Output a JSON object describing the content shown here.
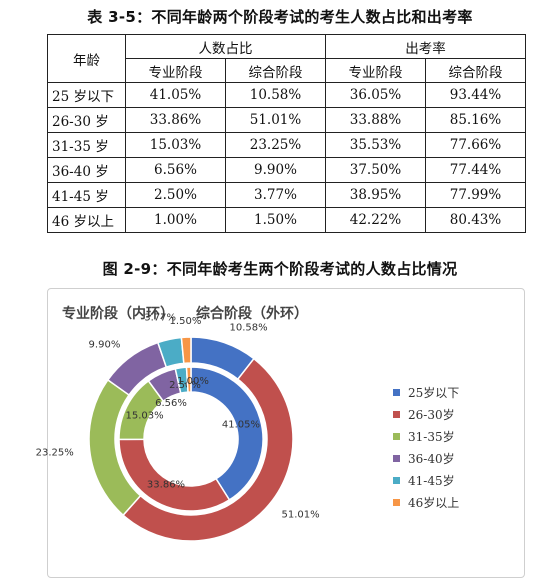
{
  "table_caption": "表 3-5：不同年龄两个阶段考试的考生人数占比和出考率",
  "figure_caption": "图 2-9：不同年龄考生两个阶段考试的人数占比情况",
  "table": {
    "age_header": "年龄",
    "group_share": "人数占比",
    "group_rate": "出考率",
    "sub_professional": "专业阶段",
    "sub_comprehensive": "综合阶段",
    "rows": [
      {
        "age": "25 岁以下",
        "share_pro": "41.05%",
        "share_comp": "10.58%",
        "rate_pro": "36.05%",
        "rate_comp": "93.44%"
      },
      {
        "age": "26-30 岁",
        "share_pro": "33.86%",
        "share_comp": "51.01%",
        "rate_pro": "33.88%",
        "rate_comp": "85.16%"
      },
      {
        "age": "31-35 岁",
        "share_pro": "15.03%",
        "share_comp": "23.25%",
        "rate_pro": "35.53%",
        "rate_comp": "77.66%"
      },
      {
        "age": "36-40 岁",
        "share_pro": "6.56%",
        "share_comp": "9.90%",
        "rate_pro": "37.50%",
        "rate_comp": "77.44%"
      },
      {
        "age": "41-45 岁",
        "share_pro": "2.50%",
        "share_comp": "3.77%",
        "rate_pro": "38.95%",
        "rate_comp": "77.99%"
      },
      {
        "age": "46 岁以上",
        "share_pro": "1.00%",
        "share_comp": "1.50%",
        "rate_pro": "42.22%",
        "rate_comp": "80.43%"
      }
    ]
  },
  "chart_data": {
    "type": "pie",
    "subtype": "donut",
    "title_parts": [
      "专业阶段（内环）",
      "综合阶段（外环）"
    ],
    "categories": [
      "25岁以下",
      "26-30岁",
      "31-35岁",
      "36-40岁",
      "41-45岁",
      "46岁以上"
    ],
    "series": [
      {
        "ring": "inner",
        "values": [
          41.05,
          33.86,
          15.03,
          6.56,
          2.5,
          1.0
        ]
      },
      {
        "ring": "outer",
        "values": [
          10.58,
          51.01,
          23.25,
          9.9,
          3.77,
          1.5
        ]
      }
    ],
    "colors": [
      "#4472C4",
      "#C0504D",
      "#9BBB59",
      "#8064A2",
      "#4BACC6",
      "#F79646"
    ],
    "legend_position": "right"
  }
}
